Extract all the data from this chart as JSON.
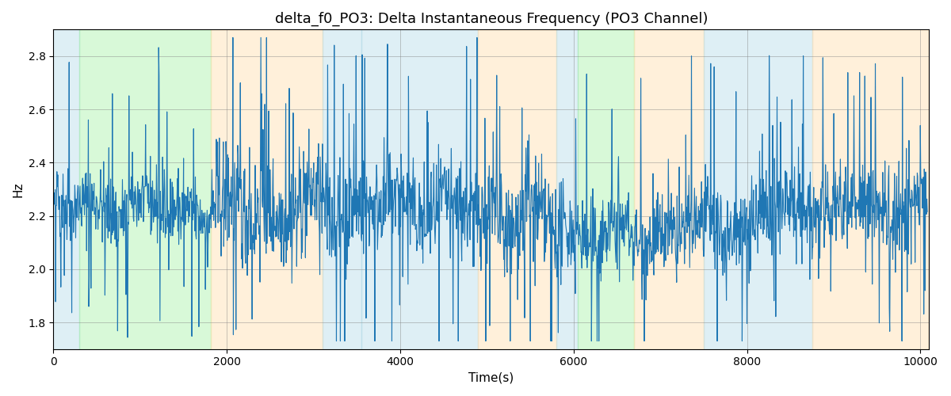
{
  "title": "delta_f0_PO3: Delta Instantaneous Frequency (PO3 Channel)",
  "xlabel": "Time(s)",
  "ylabel": "Hz",
  "xlim": [
    0,
    10100
  ],
  "ylim": [
    1.7,
    2.9
  ],
  "line_color": "#1f77b4",
  "line_width": 0.8,
  "seed": 42,
  "n_points": 2000,
  "x_start": 10,
  "x_end": 10080,
  "background_regions": [
    {
      "xmin": 0,
      "xmax": 300,
      "color": "#add8e6",
      "alpha": 0.4
    },
    {
      "xmin": 300,
      "xmax": 1820,
      "color": "#90ee90",
      "alpha": 0.35
    },
    {
      "xmin": 1820,
      "xmax": 3100,
      "color": "#ffdead",
      "alpha": 0.45
    },
    {
      "xmin": 3100,
      "xmax": 3550,
      "color": "#add8e6",
      "alpha": 0.4
    },
    {
      "xmin": 3550,
      "xmax": 4900,
      "color": "#add8e6",
      "alpha": 0.4
    },
    {
      "xmin": 4900,
      "xmax": 5800,
      "color": "#ffdead",
      "alpha": 0.45
    },
    {
      "xmin": 5800,
      "xmax": 6050,
      "color": "#add8e6",
      "alpha": 0.4
    },
    {
      "xmin": 6050,
      "xmax": 6700,
      "color": "#90ee90",
      "alpha": 0.35
    },
    {
      "xmin": 6700,
      "xmax": 7500,
      "color": "#ffdead",
      "alpha": 0.45
    },
    {
      "xmin": 7500,
      "xmax": 8750,
      "color": "#add8e6",
      "alpha": 0.4
    },
    {
      "xmin": 8750,
      "xmax": 10100,
      "color": "#ffdead",
      "alpha": 0.45
    }
  ],
  "title_fontsize": 13,
  "label_fontsize": 11,
  "xticks": [
    0,
    2000,
    4000,
    6000,
    8000,
    10000
  ],
  "yticks": [
    1.8,
    2.0,
    2.2,
    2.4,
    2.6,
    2.8
  ]
}
